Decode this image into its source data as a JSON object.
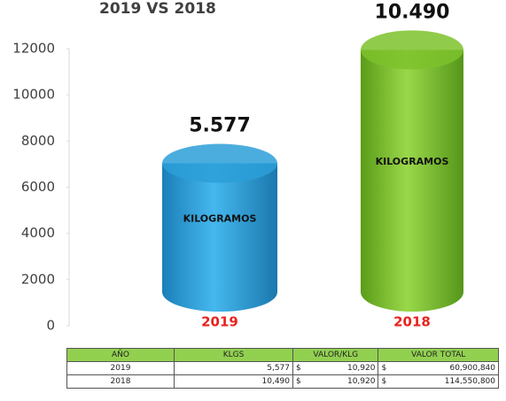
{
  "chart_data": {
    "type": "bar",
    "title": "2019 VS 2018",
    "categories": [
      "2019",
      "2018"
    ],
    "series": [
      {
        "name": "KILOGRAMOS",
        "colors": [
          "#2c9fd8",
          "#7dc22b"
        ],
        "values": [
          5577,
          10490
        ],
        "value_labels": [
          "5.577",
          "10.490"
        ]
      }
    ],
    "ylim": [
      0,
      12000
    ],
    "yticks": [
      0,
      2000,
      4000,
      6000,
      8000,
      10000,
      12000
    ]
  },
  "table": {
    "header": [
      "AÑO",
      "KLGS",
      "VALOR/KLG",
      "VALOR TOTAL"
    ],
    "rows": [
      [
        "2019",
        "5,577",
        "$",
        "10,920",
        "$",
        "60,900,840"
      ],
      [
        "2018",
        "10,490",
        "$",
        "10,920",
        "$",
        "114,550,800"
      ]
    ]
  }
}
